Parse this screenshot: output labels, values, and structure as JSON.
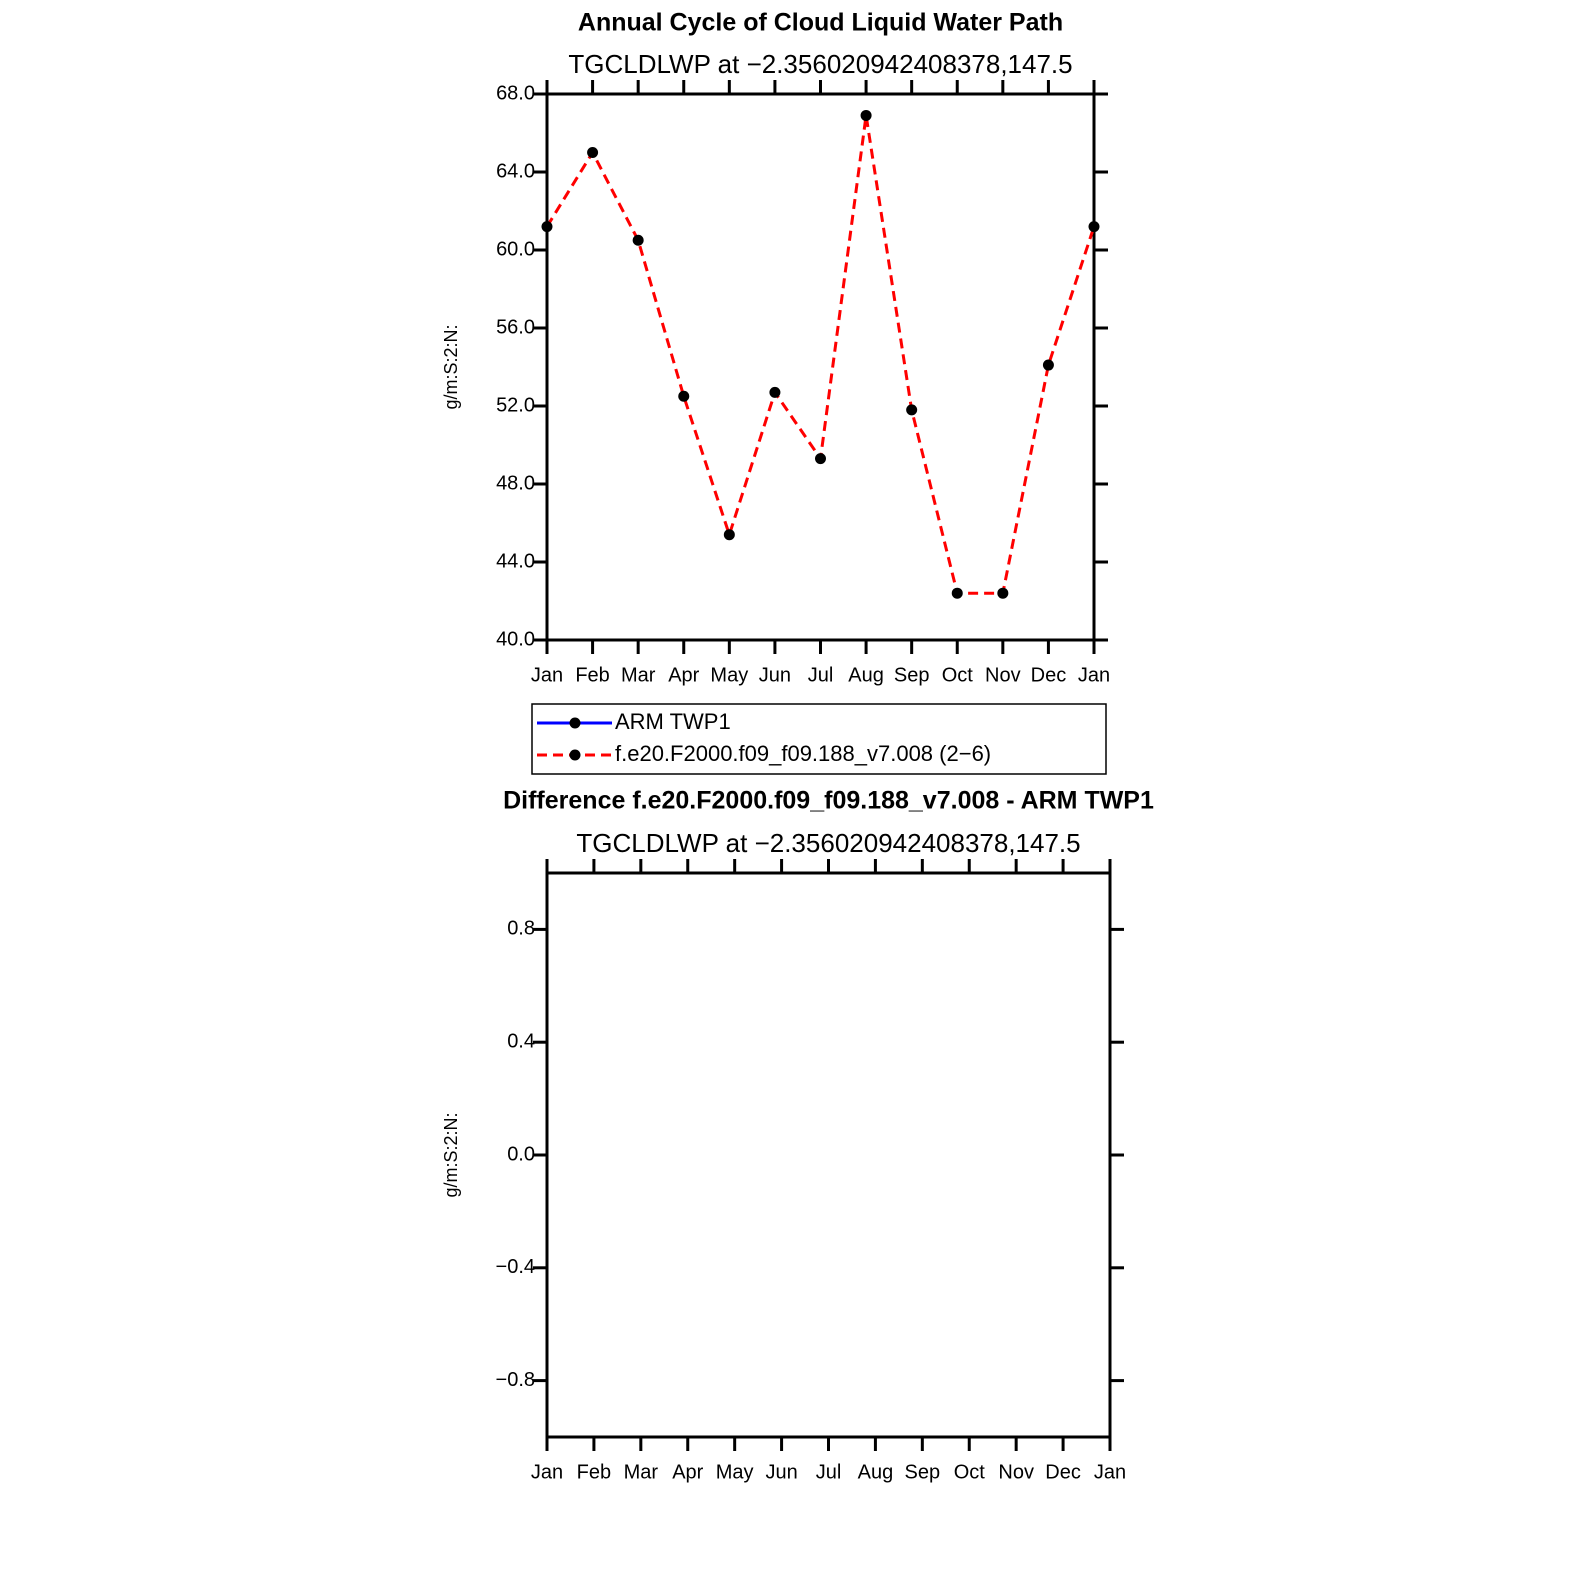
{
  "chart_data": [
    {
      "type": "line",
      "title": "Annual Cycle of Cloud Liquid Water Path",
      "subtitle": "TGCLDLWP at −2.356020942408378,147.5",
      "ylabel": "g/m:S:2:N:",
      "categories": [
        "Jan",
        "Feb",
        "Mar",
        "Apr",
        "May",
        "Jun",
        "Jul",
        "Aug",
        "Sep",
        "Oct",
        "Nov",
        "Dec",
        "Jan"
      ],
      "series": [
        {
          "name": "ARM TWP1",
          "color": "#0000ff",
          "linestyle": "solid",
          "values": [
            null,
            null,
            null,
            null,
            null,
            null,
            null,
            null,
            null,
            null,
            null,
            null,
            null
          ]
        },
        {
          "name": "f.e20.F2000.f09_f09.188_v7.008 (2−6)",
          "color": "#ff0000",
          "linestyle": "dashed",
          "values": [
            61.2,
            65.0,
            60.5,
            52.5,
            45.4,
            52.7,
            49.3,
            66.9,
            51.8,
            42.4,
            42.4,
            54.1,
            61.2
          ]
        }
      ],
      "marker_color": "#000000",
      "ylim": [
        40,
        68
      ],
      "yticks": [
        {
          "value": 40,
          "label": "40.0"
        },
        {
          "value": 44,
          "label": "44.0"
        },
        {
          "value": 48,
          "label": "48.0"
        },
        {
          "value": 52,
          "label": "52.0"
        },
        {
          "value": 56,
          "label": "56.0"
        },
        {
          "value": 60,
          "label": "60.0"
        },
        {
          "value": 64,
          "label": "64.0"
        },
        {
          "value": 68,
          "label": "68.0"
        }
      ],
      "legend": "below"
    },
    {
      "type": "line",
      "title": "Difference f.e20.F2000.f09_f09.188_v7.008 - ARM TWP1",
      "subtitle": "TGCLDLWP at −2.356020942408378,147.5",
      "ylabel": "g/m:S:2:N:",
      "categories": [
        "Jan",
        "Feb",
        "Mar",
        "Apr",
        "May",
        "Jun",
        "Jul",
        "Aug",
        "Sep",
        "Oct",
        "Nov",
        "Dec",
        "Jan"
      ],
      "series": [],
      "ylim": [
        -1,
        1
      ],
      "yticks": [
        {
          "value": -0.8,
          "label": "−0.8"
        },
        {
          "value": -0.4,
          "label": "−0.4"
        },
        {
          "value": 0,
          "label": "0.0"
        },
        0.4,
        0.8
      ]
    }
  ]
}
